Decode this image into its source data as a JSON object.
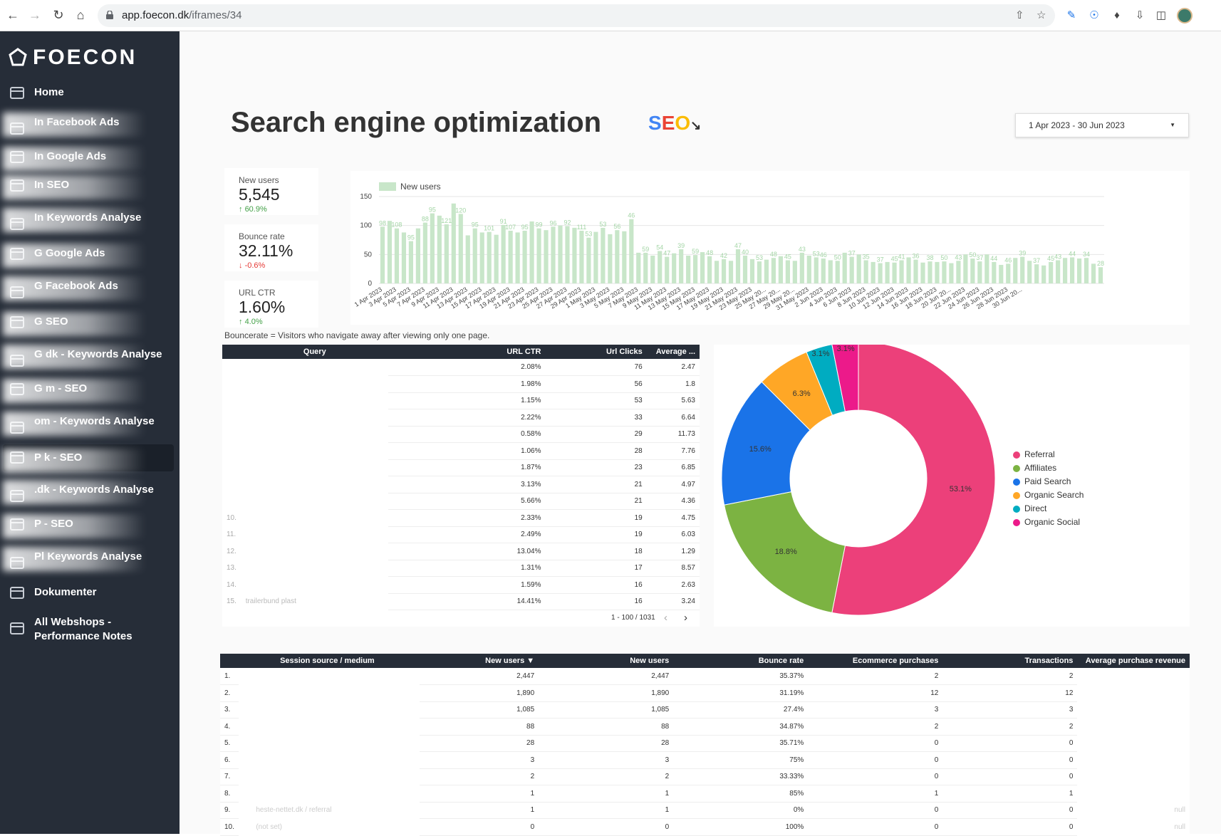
{
  "browser": {
    "url_host": "app.foecon.dk",
    "url_path": "/iframes/34"
  },
  "sidebar": {
    "brand": "FOECON",
    "items": [
      {
        "label": "Home"
      },
      {
        "label": "In Facebook Ads"
      },
      {
        "label": "In Google Ads"
      },
      {
        "label": "In SEO"
      },
      {
        "label": "In Keywords Analyse"
      },
      {
        "label": "G Google Ads"
      },
      {
        "label": "G Facebook Ads"
      },
      {
        "label": "G SEO"
      },
      {
        "label": "G dk - Keywords Analyse"
      },
      {
        "label": "G m - SEO"
      },
      {
        "label": "om - Keywords Analyse"
      },
      {
        "label": "P k - SEO"
      },
      {
        "label": ".dk - Keywords Analyse"
      },
      {
        "label": "P - SEO"
      },
      {
        "label": "Pl Keywords Analyse"
      },
      {
        "label": "Dokumenter"
      },
      {
        "label": "All Webshops - Performance Notes"
      }
    ]
  },
  "header": {
    "title": "Search engine optimization",
    "logo_text": "SEO",
    "date_range": "1 Apr 2023 - 30 Jun 2023"
  },
  "kpis": [
    {
      "label": "New users",
      "value": "5,545",
      "change": "60.9%",
      "dir": "up"
    },
    {
      "label": "Bounce rate",
      "value": "32.11%",
      "change": "-0.6%",
      "dir": "down"
    },
    {
      "label": "URL CTR",
      "value": "1.60%",
      "change": "4.0%",
      "dir": "up"
    }
  ],
  "bouncerate_note": "Bouncerate = Visitors who navigate away after viewing only one page.",
  "chart_data": [
    {
      "type": "bar",
      "legend": "New users",
      "ylim": [
        0,
        150
      ],
      "yticks": [
        0,
        50,
        100,
        150
      ],
      "color": "#c8e6c9",
      "values": [
        98,
        108,
        95,
        88,
        73,
        95,
        105,
        121,
        117,
        102,
        138,
        120,
        83,
        95,
        88,
        89,
        84,
        101,
        91,
        88,
        91,
        107,
        95,
        92,
        98,
        100,
        99,
        96,
        91,
        79,
        89,
        96,
        85,
        92,
        90,
        111,
        53,
        53,
        48,
        56,
        46,
        52,
        59,
        48,
        49,
        54,
        47,
        39,
        42,
        39,
        59,
        48,
        42,
        38,
        41,
        44,
        47,
        40,
        39,
        53,
        48,
        45,
        43,
        40,
        39,
        53,
        46,
        50,
        40,
        37,
        35,
        37,
        36,
        40,
        45,
        41,
        36,
        38,
        37,
        38,
        35,
        39,
        50,
        43,
        38,
        50,
        37,
        32,
        34,
        44,
        46,
        39,
        33,
        31,
        37,
        40,
        44,
        45,
        43,
        44,
        34,
        28
      ],
      "xlabels": [
        "1 Apr 2023",
        "3 Apr 2023",
        "5 Apr 2023",
        "7 Apr 2023",
        "9 Apr 2023",
        "11 Apr 2023",
        "13 Apr 2023",
        "15 Apr 2023",
        "17 Apr 2023",
        "19 Apr 2023",
        "21 Apr 2023",
        "23 Apr 2023",
        "25 Apr 2023",
        "27 Apr 2023",
        "29 Apr 2023",
        "1 May 2023",
        "3 May 2023",
        "5 May 2023",
        "7 May 2023",
        "9 May 2023",
        "11 May 2023",
        "13 May 2023",
        "15 May 2023",
        "17 May 2023",
        "19 May 2023",
        "21 May 2023",
        "23 May 2023",
        "25 May 20...",
        "27 May 20...",
        "29 May 20...",
        "31 May 2023",
        "2 Jun 2023",
        "4 Jun 2023",
        "6 Jun 2023",
        "8 Jun 2023",
        "10 Jun 2023",
        "12 Jun 2023",
        "14 Jun 2023",
        "16 Jun 2023",
        "18 Jun 2023",
        "20 Jun 20...",
        "22 Jun 2023",
        "24 Jun 2023",
        "26 Jun 2023",
        "28 Jun 2023",
        "30 Jun 20..."
      ],
      "label_values": [
        98,
        108,
        95,
        88,
        95,
        121,
        120,
        95,
        101,
        91,
        107,
        95,
        99,
        96,
        92,
        111,
        53,
        53,
        56,
        46,
        59,
        54,
        47,
        39,
        59,
        48,
        42,
        47,
        40,
        53,
        48,
        45,
        43,
        53,
        46,
        50,
        37,
        35,
        37,
        45,
        41,
        36,
        38,
        50,
        43,
        50,
        37,
        44,
        46,
        39,
        37,
        45,
        43,
        44,
        34,
        28
      ]
    },
    {
      "type": "pie",
      "donut": true,
      "slices": [
        {
          "name": "Referral",
          "value": 53.1,
          "label": "53.1%",
          "color": "#ec407a"
        },
        {
          "name": "Affiliates",
          "value": 18.8,
          "label": "18.8%",
          "color": "#7cb342"
        },
        {
          "name": "Paid Search",
          "value": 15.6,
          "label": "15.6%",
          "color": "#1a73e8"
        },
        {
          "name": "Organic Search",
          "value": 6.3,
          "label": "6.3%",
          "color": "#ffa726"
        },
        {
          "name": "Direct",
          "value": 3.1,
          "label": "3.1%",
          "color": "#00acc1"
        },
        {
          "name": "Organic Social",
          "value": 3.1,
          "label": "3.1%",
          "color": "#ec1a8a"
        }
      ]
    }
  ],
  "query_table": {
    "headers": [
      "Query",
      "URL CTR",
      "Url Clicks",
      "Average ..."
    ],
    "rows": [
      {
        "n": "",
        "q": "",
        "ctr": "2.08%",
        "clicks": "76",
        "avg": "2.47"
      },
      {
        "n": "",
        "q": "",
        "ctr": "1.98%",
        "clicks": "56",
        "avg": "1.8"
      },
      {
        "n": "",
        "q": "",
        "ctr": "1.15%",
        "clicks": "53",
        "avg": "5.63"
      },
      {
        "n": "",
        "q": "",
        "ctr": "2.22%",
        "clicks": "33",
        "avg": "6.64"
      },
      {
        "n": "",
        "q": "",
        "ctr": "0.58%",
        "clicks": "29",
        "avg": "11.73"
      },
      {
        "n": "",
        "q": "",
        "ctr": "1.06%",
        "clicks": "28",
        "avg": "7.76"
      },
      {
        "n": "",
        "q": "",
        "ctr": "1.87%",
        "clicks": "23",
        "avg": "6.85"
      },
      {
        "n": "",
        "q": "",
        "ctr": "3.13%",
        "clicks": "21",
        "avg": "4.97"
      },
      {
        "n": "",
        "q": "",
        "ctr": "5.66%",
        "clicks": "21",
        "avg": "4.36"
      },
      {
        "n": "10.",
        "q": "",
        "ctr": "2.33%",
        "clicks": "19",
        "avg": "4.75"
      },
      {
        "n": "11.",
        "q": "",
        "ctr": "2.49%",
        "clicks": "19",
        "avg": "6.03"
      },
      {
        "n": "12.",
        "q": "",
        "ctr": "13.04%",
        "clicks": "18",
        "avg": "1.29"
      },
      {
        "n": "13.",
        "q": "",
        "ctr": "1.31%",
        "clicks": "17",
        "avg": "8.57"
      },
      {
        "n": "14.",
        "q": "",
        "ctr": "1.59%",
        "clicks": "16",
        "avg": "2.63"
      },
      {
        "n": "15.",
        "q": "trailerbund plast",
        "ctr": "14.41%",
        "clicks": "16",
        "avg": "3.24"
      }
    ],
    "pager": "1 - 100 / 1031"
  },
  "source_table": {
    "headers": [
      "Session source / medium",
      "New users ▼",
      "New users",
      "Bounce rate",
      "Ecommerce purchases",
      "Transactions",
      "Average purchase revenue"
    ],
    "rows": [
      {
        "n": "1.",
        "src": "",
        "nu1": "2,447",
        "nu2": "2,447",
        "br": "35.37%",
        "ep": "2",
        "tr": "2",
        "apr": ""
      },
      {
        "n": "2.",
        "src": "",
        "nu1": "1,890",
        "nu2": "1,890",
        "br": "31.19%",
        "ep": "12",
        "tr": "12",
        "apr": ""
      },
      {
        "n": "3.",
        "src": "",
        "nu1": "1,085",
        "nu2": "1,085",
        "br": "27.4%",
        "ep": "3",
        "tr": "3",
        "apr": ""
      },
      {
        "n": "4.",
        "src": "",
        "nu1": "88",
        "nu2": "88",
        "br": "34.87%",
        "ep": "2",
        "tr": "2",
        "apr": ""
      },
      {
        "n": "5.",
        "src": "",
        "nu1": "28",
        "nu2": "28",
        "br": "35.71%",
        "ep": "0",
        "tr": "0",
        "apr": ""
      },
      {
        "n": "6.",
        "src": "",
        "nu1": "3",
        "nu2": "3",
        "br": "75%",
        "ep": "0",
        "tr": "0",
        "apr": ""
      },
      {
        "n": "7.",
        "src": "",
        "nu1": "2",
        "nu2": "2",
        "br": "33.33%",
        "ep": "0",
        "tr": "0",
        "apr": ""
      },
      {
        "n": "8.",
        "src": "",
        "nu1": "1",
        "nu2": "1",
        "br": "85%",
        "ep": "1",
        "tr": "1",
        "apr": ""
      },
      {
        "n": "9.",
        "src": "heste-nettet.dk / referral",
        "nu1": "1",
        "nu2": "1",
        "br": "0%",
        "ep": "0",
        "tr": "0",
        "apr": "null"
      },
      {
        "n": "10.",
        "src": "(not set)",
        "nu1": "0",
        "nu2": "0",
        "br": "100%",
        "ep": "0",
        "tr": "0",
        "apr": "null"
      }
    ]
  }
}
